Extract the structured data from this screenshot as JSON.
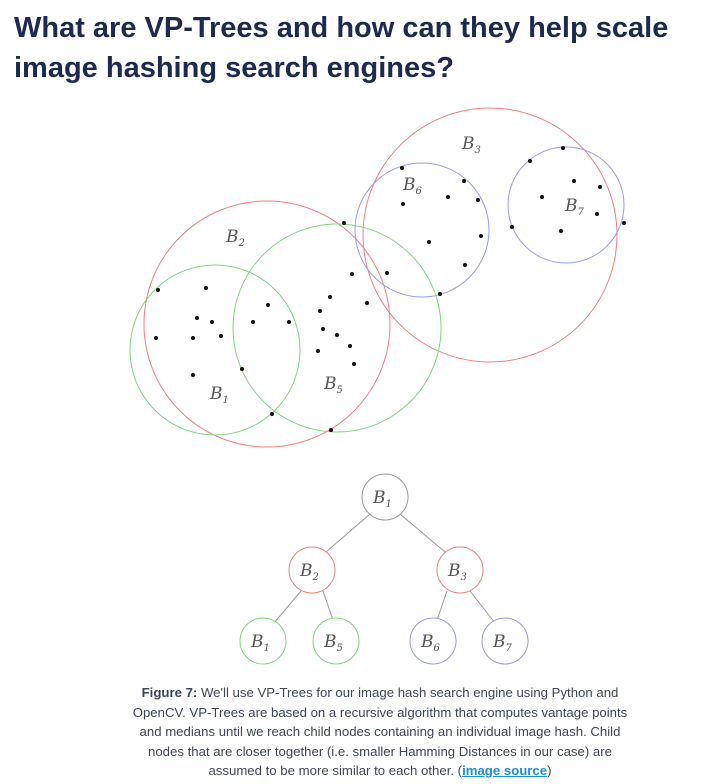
{
  "article": {
    "title": "What are VP-Trees and how can they help scale image hashing search engines?"
  },
  "figure": {
    "region_labels": [
      "B",
      "B",
      "B",
      "B",
      "B",
      "B"
    ],
    "region_subscripts": [
      "3",
      "6",
      "7",
      "2",
      "1",
      "5"
    ],
    "tree_nodes": [
      {
        "label": "B",
        "sub": "1"
      },
      {
        "label": "B",
        "sub": "2"
      },
      {
        "label": "B",
        "sub": "3"
      },
      {
        "label": "B",
        "sub": "1"
      },
      {
        "label": "B",
        "sub": "5"
      },
      {
        "label": "B",
        "sub": "6"
      },
      {
        "label": "B",
        "sub": "7"
      }
    ],
    "colors": {
      "red": "#f08080",
      "green": "#7fd67f",
      "blue": "#9a9af0",
      "gray": "#9a9a9a"
    }
  },
  "caption": {
    "prefix": "Figure 7:",
    "text": " We'll use VP-Trees for our image hash search engine using Python and OpenCV. VP-Trees are based on a recursive algorithm that computes vantage points and medians until we reach child nodes containing an individual image hash. Child nodes that are closer together (i.e. smaller Hamming Distances in our case) are assumed to be more similar to each other. (",
    "link_text": "image source",
    "suffix": ")"
  }
}
